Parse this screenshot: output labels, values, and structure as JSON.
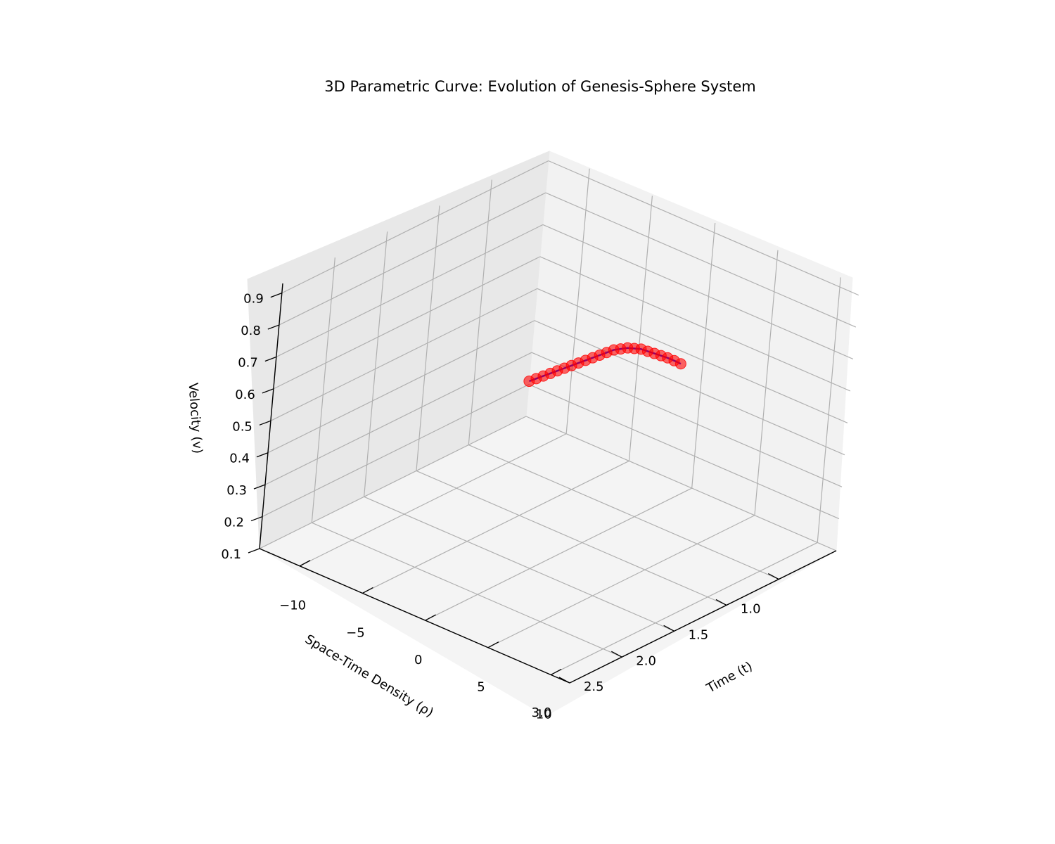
{
  "chart_data": {
    "type": "line3d",
    "title": "3D Parametric Curve: Evolution of Genesis-Sphere System",
    "xlabel": "Time (t)",
    "ylabel": "Space-Time Density (ρ)",
    "zlabel": "Velocity (v)",
    "xlim": [
      -13.2,
      11.5
    ],
    "ylim": [
      0.45,
      3.0
    ],
    "zlim": [
      0.1,
      0.93
    ],
    "xticks": [
      -10,
      -5,
      0,
      5,
      10
    ],
    "xtick_labels": [
      "−10",
      "−5",
      "0",
      "5",
      "10"
    ],
    "yticks": [
      1.0,
      1.5,
      2.0,
      2.5,
      3.0
    ],
    "ytick_labels": [
      "1.0",
      "1.5",
      "2.0",
      "2.5",
      "3.0"
    ],
    "zticks": [
      0.1,
      0.2,
      0.3,
      0.4,
      0.5,
      0.6,
      0.7,
      0.8,
      0.9
    ],
    "ztick_labels": [
      "0.1",
      "0.2",
      "0.3",
      "0.4",
      "0.5",
      "0.6",
      "0.7",
      "0.8",
      "0.9"
    ],
    "grid": true,
    "line_color": "#0000ff",
    "marker_color": "#ff0000",
    "x": [
      -13.2,
      -12.6,
      -12.0,
      -11.4,
      -10.8,
      -10.2,
      -9.6,
      -9.0,
      -8.4,
      -7.8,
      -7.2,
      -6.6,
      -6.0,
      -5.4,
      -4.8,
      -4.2,
      -3.6,
      -3.0,
      -2.4,
      -1.8,
      -1.2,
      -0.6,
      0.0
    ],
    "y": [
      0.45,
      0.46,
      0.47,
      0.48,
      0.49,
      0.5,
      0.51,
      0.52,
      0.53,
      0.54,
      0.55,
      0.56,
      0.57,
      0.58,
      0.59,
      0.6,
      0.61,
      0.62,
      0.63,
      0.64,
      0.65,
      0.66,
      0.67
    ],
    "z": [
      0.21,
      0.23,
      0.25,
      0.27,
      0.29,
      0.31,
      0.33,
      0.35,
      0.37,
      0.39,
      0.41,
      0.43,
      0.45,
      0.465,
      0.48,
      0.49,
      0.5,
      0.505,
      0.51,
      0.515,
      0.52,
      0.523,
      0.525
    ]
  }
}
